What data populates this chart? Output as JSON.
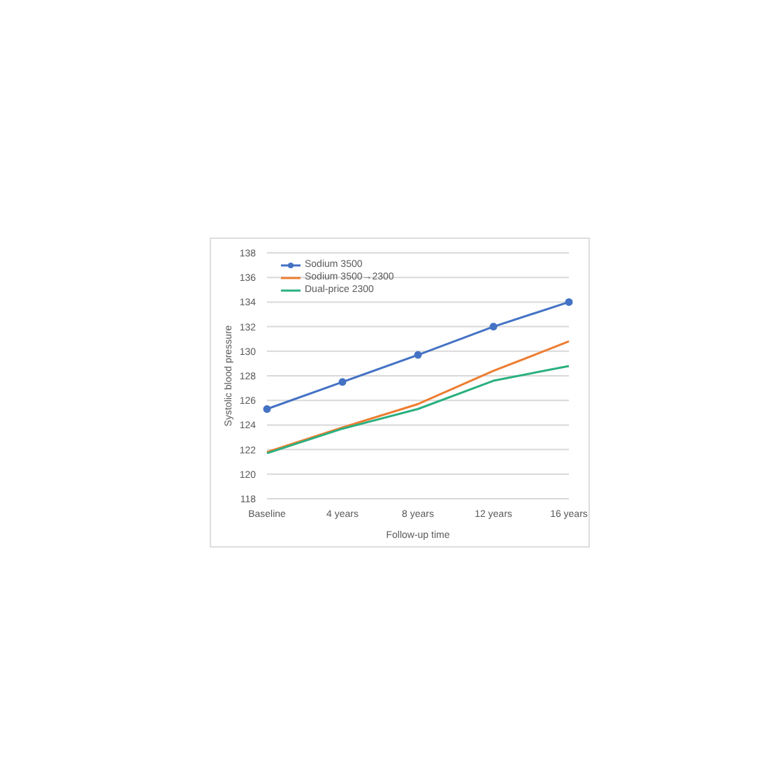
{
  "chart_data": {
    "type": "line",
    "xlabel": "Follow-up time",
    "ylabel": "Systolic blood pressure",
    "categories": [
      "Baseline",
      "4 years",
      "8 years",
      "12 years",
      "16 years"
    ],
    "series": [
      {
        "name": "Sodium 3500",
        "color": "#4472c4",
        "marker": "circle",
        "values": [
          125.3,
          127.5,
          129.7,
          132,
          134
        ]
      },
      {
        "name": "Sodium 3500→2300",
        "color": "#ed7d31",
        "marker": "none",
        "values": [
          121.8,
          123.8,
          125.7,
          128.4,
          130.8
        ]
      },
      {
        "name": "Dual-price 2300",
        "color": "#2ab07f",
        "marker": "none",
        "values": [
          121.7,
          123.7,
          125.3,
          127.6,
          128.8
        ]
      }
    ],
    "ylim": [
      118,
      138
    ],
    "yticks": [
      118,
      120,
      122,
      124,
      126,
      128,
      130,
      132,
      134,
      136,
      138
    ],
    "grid": "y",
    "legend": "top left"
  }
}
